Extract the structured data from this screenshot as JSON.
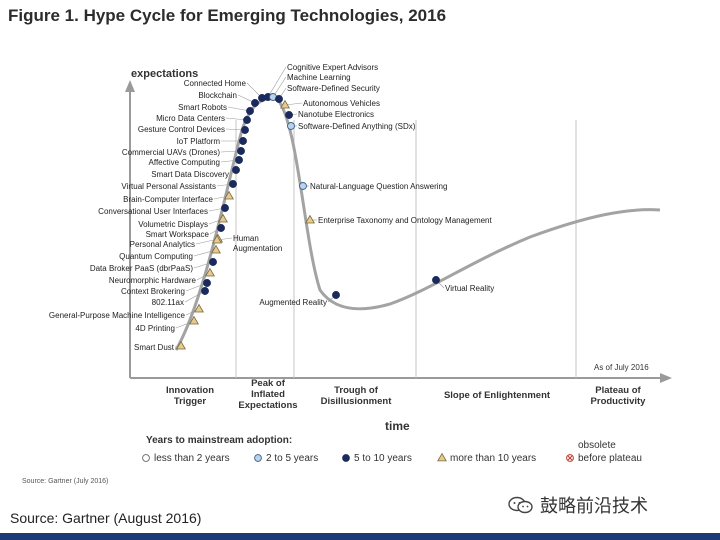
{
  "figure": {
    "title": "Figure 1. Hype Cycle for Emerging Technologies, 2016",
    "small_source": "Source: Gartner (July 2016)",
    "big_source": "Source: Gartner (August 2016)",
    "as_of": "As of July 2016",
    "y_axis_label": "expectations",
    "x_axis_label": "time",
    "watermark_text": "鼓略前沿技术"
  },
  "phases": [
    {
      "lines": [
        "Innovation",
        "Trigger"
      ]
    },
    {
      "lines": [
        "Peak of",
        "Inflated",
        "Expectations"
      ]
    },
    {
      "lines": [
        "Trough of",
        "Disillusionment"
      ]
    },
    {
      "lines": [
        "Slope of Enlightenment"
      ]
    },
    {
      "lines": [
        "Plateau of",
        "Productivity"
      ]
    }
  ],
  "legend": {
    "title": "Years to mainstream adoption:",
    "items": [
      {
        "label": "less than 2 years",
        "kind": "white-circle"
      },
      {
        "label": "2 to 5 years",
        "kind": "light-circle"
      },
      {
        "label": "5 to 10 years",
        "kind": "dark-circle"
      },
      {
        "label": "more than 10 years",
        "kind": "triangle"
      },
      {
        "label": "before plateau",
        "kind": "x-circle",
        "pre": "obsolete"
      }
    ]
  },
  "colors": {
    "curve": "#a3a3a3",
    "dark_marker": "#1a2a5c",
    "light_marker": "#b9d3ea",
    "triangle": "#e8c98f",
    "triangle_stroke": "#7a6a3a",
    "x_marker": "#c0392b",
    "bottom_bar": "#1d3a78"
  },
  "technologies": [
    {
      "name": "Connected Home",
      "kind": "dark"
    },
    {
      "name": "Blockchain",
      "kind": "dark"
    },
    {
      "name": "Smart Robots",
      "kind": "dark"
    },
    {
      "name": "Micro Data Centers",
      "kind": "dark"
    },
    {
      "name": "Gesture Control Devices",
      "kind": "dark"
    },
    {
      "name": "IoT Platform",
      "kind": "dark"
    },
    {
      "name": "Commercial UAVs (Drones)",
      "kind": "dark"
    },
    {
      "name": "Affective Computing",
      "kind": "dark"
    },
    {
      "name": "Smart Data Discovery",
      "kind": "dark"
    },
    {
      "name": "Virtual Personal Assistants",
      "kind": "dark"
    },
    {
      "name": "Brain-Computer Interface",
      "kind": "triangle"
    },
    {
      "name": "Conversational User Interfaces",
      "kind": "dark"
    },
    {
      "name": "Volumetric Displays",
      "kind": "triangle"
    },
    {
      "name": "Smart Workspace",
      "kind": "dark"
    },
    {
      "name": "Personal Analytics",
      "kind": "triangle"
    },
    {
      "name": "Quantum Computing",
      "kind": "triangle"
    },
    {
      "name": "Data Broker PaaS (dbrPaaS)",
      "kind": "dark"
    },
    {
      "name": "Neuromorphic Hardware",
      "kind": "triangle"
    },
    {
      "name": "Context Brokering",
      "kind": "dark"
    },
    {
      "name": "802.11ax",
      "kind": "dark"
    },
    {
      "name": "General-Purpose Machine Intelligence",
      "kind": "triangle"
    },
    {
      "name": "4D Printing",
      "kind": "triangle"
    },
    {
      "name": "Smart Dust",
      "kind": "triangle"
    },
    {
      "name": "Human Augmentation",
      "kind": "triangle"
    },
    {
      "name": "Cognitive Expert Advisors",
      "kind": "dark"
    },
    {
      "name": "Machine Learning",
      "kind": "light"
    },
    {
      "name": "Software-Defined Security",
      "kind": "dark"
    },
    {
      "name": "Autonomous Vehicles",
      "kind": "triangle"
    },
    {
      "name": "Nanotube Electronics",
      "kind": "dark"
    },
    {
      "name": "Software-Defined Anything (SDx)",
      "kind": "light"
    },
    {
      "name": "Natural-Language Question Answering",
      "kind": "light"
    },
    {
      "name": "Enterprise Taxonomy and Ontology Management",
      "kind": "triangle"
    },
    {
      "name": "Augmented Reality",
      "kind": "dark"
    },
    {
      "name": "Virtual Reality",
      "kind": "dark"
    }
  ]
}
